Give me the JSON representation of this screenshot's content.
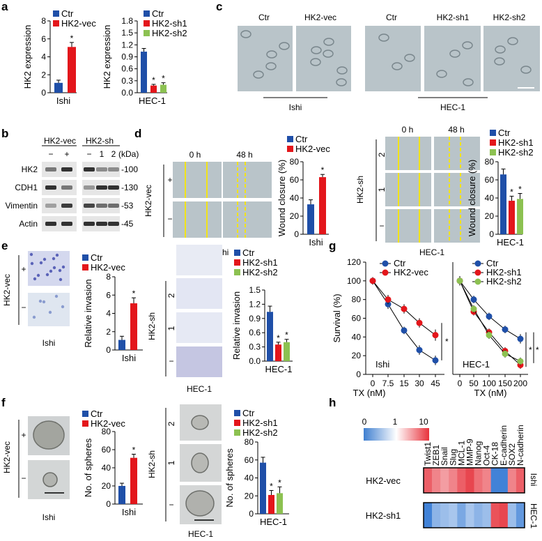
{
  "panel_letters": {
    "a": "a",
    "b": "b",
    "c": "c",
    "d": "d",
    "e": "e",
    "f": "f",
    "g": "g",
    "h": "h"
  },
  "colors": {
    "ctr": "#1f4fa8",
    "vec": "#e3161b",
    "sh1": "#e3161b",
    "sh2": "#8cc151"
  },
  "panel_a": {
    "ishi": {
      "ylabel": "HK2 expression",
      "xgroup": "Ishi",
      "legend": [
        "Ctr",
        "HK2-vec"
      ],
      "ticks": [
        "0",
        "2",
        "4",
        "6",
        "8"
      ],
      "star": "*"
    },
    "hec": {
      "ylabel": "HK2 expression",
      "xgroup": "HEC-1",
      "legend": [
        "Ctr",
        "HK2-sh1",
        "HK2-sh2"
      ],
      "ticks": [
        "0.0",
        "0.3",
        "0.6",
        "0.9",
        "1.2",
        "1.5",
        "1.8"
      ],
      "stars": [
        "*",
        "*"
      ]
    }
  },
  "panel_b": {
    "group1": "HK2-vec",
    "group2": "HK2-sh",
    "kda": "(kDa)",
    "lanes1": [
      "−",
      "+"
    ],
    "lanes2": [
      "−",
      "1",
      "2"
    ],
    "rows": [
      {
        "label": "HK2",
        "mw": "-100"
      },
      {
        "label": "CDH1",
        "mw": "-130"
      },
      {
        "label": "Vimentin",
        "mw": "-53"
      },
      {
        "label": "Actin",
        "mw": "-45"
      }
    ]
  },
  "panel_c": {
    "labels": [
      "Ctr",
      "HK2-vec",
      "Ctr",
      "HK2-sh1",
      "HK2-sh2"
    ],
    "group1": "Ishi",
    "group2": "HEC-1"
  },
  "panel_d": {
    "times": [
      "0 h",
      "48 h"
    ],
    "rowlabel1": "HK2-vec",
    "rowlabel2": "HK2-sh",
    "signs1": [
      "+",
      "−"
    ],
    "signs2": [
      "2",
      "1",
      "−"
    ],
    "cell1": "Ishi",
    "cell2": "HEC-1",
    "ylabel": "Wound closure (%)",
    "ticks": [
      "0",
      "20",
      "40",
      "60",
      "80"
    ],
    "legend1": [
      "Ctr",
      "HK2-vec"
    ],
    "legend2": [
      "Ctr",
      "HK2-sh1",
      "HK2-sh2"
    ],
    "star": "*"
  },
  "panel_e": {
    "rowlabel1": "HK2-vec",
    "rowlabel2": "HK2-sh",
    "signs1": [
      "+",
      "−"
    ],
    "signs2": [
      "2",
      "1",
      "−"
    ],
    "cell1": "Ishi",
    "cell2": "HEC-1",
    "ylabel": "Relative invasion",
    "ticks1": [
      "0",
      "2",
      "4",
      "6",
      "8"
    ],
    "ticks2": [
      "0.0",
      "0.3",
      "0.6",
      "0.9",
      "1.2",
      "1.5"
    ],
    "legend1": [
      "Ctr",
      "HK2-vec"
    ],
    "legend2": [
      "Ctr",
      "HK2-sh1",
      "HK2-sh2"
    ],
    "star": "*"
  },
  "panel_f": {
    "rowlabel1": "HK2-vec",
    "rowlabel2": "HK2-sh",
    "signs1": [
      "+",
      "−"
    ],
    "signs2": [
      "2",
      "1",
      "−"
    ],
    "cell1": "Ishi",
    "cell2": "HEC-1",
    "ylabel": "No. of spheres",
    "ticks1": [
      "0",
      "20",
      "40",
      "60",
      "80"
    ],
    "ticks2": [
      "0",
      "20",
      "40",
      "60",
      "80"
    ],
    "legend1": [
      "Ctr",
      "HK2-vec"
    ],
    "legend2": [
      "Ctr",
      "HK2-sh1",
      "HK2-sh2"
    ],
    "star": "*"
  },
  "panel_g": {
    "ylabel": "Survival (%)",
    "xlabel": "TX (nM)",
    "cell1": "Ishi",
    "cell2": "HEC-1",
    "yticks": [
      "0",
      "20",
      "40",
      "60",
      "80",
      "100",
      "120"
    ],
    "xticks1": [
      "0",
      "7.5",
      "15",
      "30",
      "45"
    ],
    "xticks2": [
      "0",
      "50",
      "100",
      "150",
      "200"
    ],
    "legend1": [
      "Ctr",
      "HK2-vec"
    ],
    "legend2": [
      "Ctr",
      "HK2-sh1",
      "HK2-sh2"
    ],
    "star": "*"
  },
  "panel_h": {
    "scale": [
      "0",
      "1",
      "10"
    ],
    "genes": [
      "Twist1",
      "ZEB1",
      "Snail",
      "Slug",
      "MCL-1",
      "MMP-9",
      "Nanog",
      "Oct-4",
      "CK-18",
      "E-cadherin",
      "SOX2",
      "N-cadherin"
    ],
    "rows": [
      "HK2-vec",
      "HK2-sh1"
    ],
    "cells": [
      "Ishi",
      "HEC-1"
    ]
  },
  "chart_data": [
    {
      "type": "bar",
      "title": "a Ishi",
      "ylabel": "HK2 expression",
      "categories": [
        "Ishi"
      ],
      "ylim": [
        0,
        8
      ],
      "series": [
        {
          "name": "Ctr",
          "values": [
            1.1
          ],
          "err": [
            0.3
          ]
        },
        {
          "name": "HK2-vec",
          "values": [
            5.1
          ],
          "err": [
            0.5
          ]
        }
      ]
    },
    {
      "type": "bar",
      "title": "a HEC-1",
      "ylabel": "HK2 expression",
      "categories": [
        "HEC-1"
      ],
      "ylim": [
        0,
        1.8
      ],
      "series": [
        {
          "name": "Ctr",
          "values": [
            1.03
          ],
          "err": [
            0.08
          ]
        },
        {
          "name": "HK2-sh1",
          "values": [
            0.18
          ],
          "err": [
            0.03
          ]
        },
        {
          "name": "HK2-sh2",
          "values": [
            0.2
          ],
          "err": [
            0.05
          ]
        }
      ]
    },
    {
      "type": "bar",
      "title": "d Ishi",
      "ylabel": "Wound closure (%)",
      "categories": [
        "Ishi"
      ],
      "ylim": [
        0,
        80
      ],
      "series": [
        {
          "name": "Ctr",
          "values": [
            33
          ],
          "err": [
            5
          ]
        },
        {
          "name": "HK2-vec",
          "values": [
            63
          ],
          "err": [
            3
          ]
        }
      ]
    },
    {
      "type": "bar",
      "title": "d HEC-1",
      "ylabel": "Wound closure (%)",
      "categories": [
        "HEC-1"
      ],
      "ylim": [
        0,
        80
      ],
      "series": [
        {
          "name": "Ctr",
          "values": [
            66
          ],
          "err": [
            6
          ]
        },
        {
          "name": "HK2-sh1",
          "values": [
            37
          ],
          "err": [
            5
          ]
        },
        {
          "name": "HK2-sh2",
          "values": [
            39
          ],
          "err": [
            6
          ]
        }
      ]
    },
    {
      "type": "bar",
      "title": "e Ishi",
      "ylabel": "Relative invasion",
      "categories": [
        "Ishi"
      ],
      "ylim": [
        0,
        8
      ],
      "series": [
        {
          "name": "Ctr",
          "values": [
            1.1
          ],
          "err": [
            0.4
          ]
        },
        {
          "name": "HK2-vec",
          "values": [
            5.1
          ],
          "err": [
            0.6
          ]
        }
      ]
    },
    {
      "type": "bar",
      "title": "e HEC-1",
      "ylabel": "Relative invasion",
      "categories": [
        "HEC-1"
      ],
      "ylim": [
        0,
        1.5
      ],
      "series": [
        {
          "name": "Ctr",
          "values": [
            1.04
          ],
          "err": [
            0.12
          ]
        },
        {
          "name": "HK2-sh1",
          "values": [
            0.35
          ],
          "err": [
            0.05
          ]
        },
        {
          "name": "HK2-sh2",
          "values": [
            0.4
          ],
          "err": [
            0.06
          ]
        }
      ]
    },
    {
      "type": "bar",
      "title": "f Ishi",
      "ylabel": "No. of spheres",
      "categories": [
        "Ishi"
      ],
      "ylim": [
        0,
        80
      ],
      "series": [
        {
          "name": "Ctr",
          "values": [
            20
          ],
          "err": [
            3
          ]
        },
        {
          "name": "HK2-vec",
          "values": [
            51
          ],
          "err": [
            4
          ]
        }
      ]
    },
    {
      "type": "bar",
      "title": "f HEC-1",
      "ylabel": "No. of spheres",
      "categories": [
        "HEC-1"
      ],
      "ylim": [
        0,
        80
      ],
      "series": [
        {
          "name": "Ctr",
          "values": [
            57
          ],
          "err": [
            6
          ]
        },
        {
          "name": "HK2-sh1",
          "values": [
            21
          ],
          "err": [
            5
          ]
        },
        {
          "name": "HK2-sh2",
          "values": [
            23
          ],
          "err": [
            7
          ]
        }
      ]
    },
    {
      "type": "line",
      "title": "g Ishi",
      "ylabel": "Survival (%)",
      "xlabel": "TX (nM)",
      "x": [
        0,
        7.5,
        15,
        30,
        45
      ],
      "ylim": [
        0,
        120
      ],
      "series": [
        {
          "name": "Ctr",
          "values": [
            100,
            75,
            47,
            26,
            15
          ],
          "err": [
            4,
            5,
            4,
            5,
            5
          ]
        },
        {
          "name": "HK2-vec",
          "values": [
            100,
            80,
            70,
            55,
            42
          ],
          "err": [
            4,
            5,
            5,
            5,
            6
          ]
        }
      ]
    },
    {
      "type": "line",
      "title": "g HEC-1",
      "ylabel": "Survival (%)",
      "xlabel": "TX (nM)",
      "x": [
        0,
        50,
        100,
        150,
        200
      ],
      "ylim": [
        0,
        120
      ],
      "series": [
        {
          "name": "Ctr",
          "values": [
            100,
            80,
            62,
            48,
            38
          ],
          "err": [
            5,
            4,
            4,
            4,
            5
          ]
        },
        {
          "name": "HK2-sh1",
          "values": [
            100,
            67,
            45,
            25,
            10
          ],
          "err": [
            5,
            4,
            4,
            4,
            4
          ]
        },
        {
          "name": "HK2-sh2",
          "values": [
            100,
            70,
            42,
            22,
            14
          ],
          "err": [
            5,
            4,
            4,
            4,
            4
          ]
        }
      ]
    },
    {
      "type": "heatmap",
      "title": "h",
      "rows": [
        "HK2-vec",
        "HK2-sh1"
      ],
      "columns": [
        "Twist1",
        "ZEB1",
        "Snail",
        "Slug",
        "MCL-1",
        "MMP-9",
        "Nanog",
        "Oct-4",
        "CK-18",
        "E-cadherin",
        "SOX2",
        "N-cadherin"
      ],
      "values": [
        [
          6,
          4,
          3,
          4,
          6,
          8,
          5,
          4,
          0.1,
          0.05,
          4,
          6
        ],
        [
          0.1,
          0.25,
          0.3,
          0.35,
          0.2,
          0.35,
          0.25,
          0.3,
          7,
          8,
          0.3,
          0.15
        ]
      ],
      "scale": [
        0,
        1,
        10
      ]
    }
  ]
}
